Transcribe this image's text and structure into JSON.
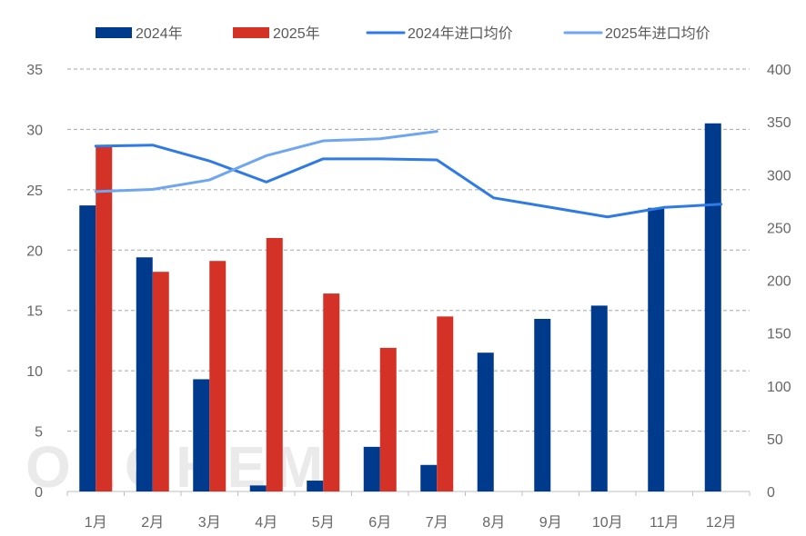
{
  "chart_data": {
    "type": "bar+line",
    "categories": [
      "1月",
      "2月",
      "3月",
      "4月",
      "5月",
      "6月",
      "7月",
      "8月",
      "9月",
      "10月",
      "11月",
      "12月"
    ],
    "bar_series": [
      {
        "name": "2024年",
        "color": "#003a8c",
        "values": [
          23.7,
          19.4,
          9.3,
          0.5,
          0.9,
          3.7,
          2.2,
          11.5,
          14.3,
          15.4,
          23.5,
          30.5
        ]
      },
      {
        "name": "2025年",
        "color": "#d43127",
        "values": [
          28.7,
          18.2,
          19.1,
          21.0,
          16.4,
          11.9,
          14.5
        ]
      }
    ],
    "line_series": [
      {
        "name": "2024年进口均价",
        "color": "#2f7ae5",
        "values": [
          327,
          328,
          313,
          293,
          315,
          315,
          314,
          278,
          269,
          260,
          269,
          272
        ]
      },
      {
        "name": "2025年进口均价",
        "color": "#6fa6f0",
        "values": [
          284,
          286,
          295,
          318,
          332,
          334,
          341
        ]
      }
    ],
    "y_left": {
      "min": 0,
      "max": 35,
      "step": 5,
      "ticks": [
        "0",
        "5",
        "10",
        "15",
        "20",
        "25",
        "30",
        "35"
      ]
    },
    "y_right": {
      "min": 0,
      "max": 400,
      "step": 50,
      "ticks": [
        "0",
        "50",
        "100",
        "150",
        "200",
        "250",
        "300",
        "350",
        "400"
      ]
    },
    "legend_position": "top",
    "grid": true,
    "watermark": "OLCHEM"
  }
}
